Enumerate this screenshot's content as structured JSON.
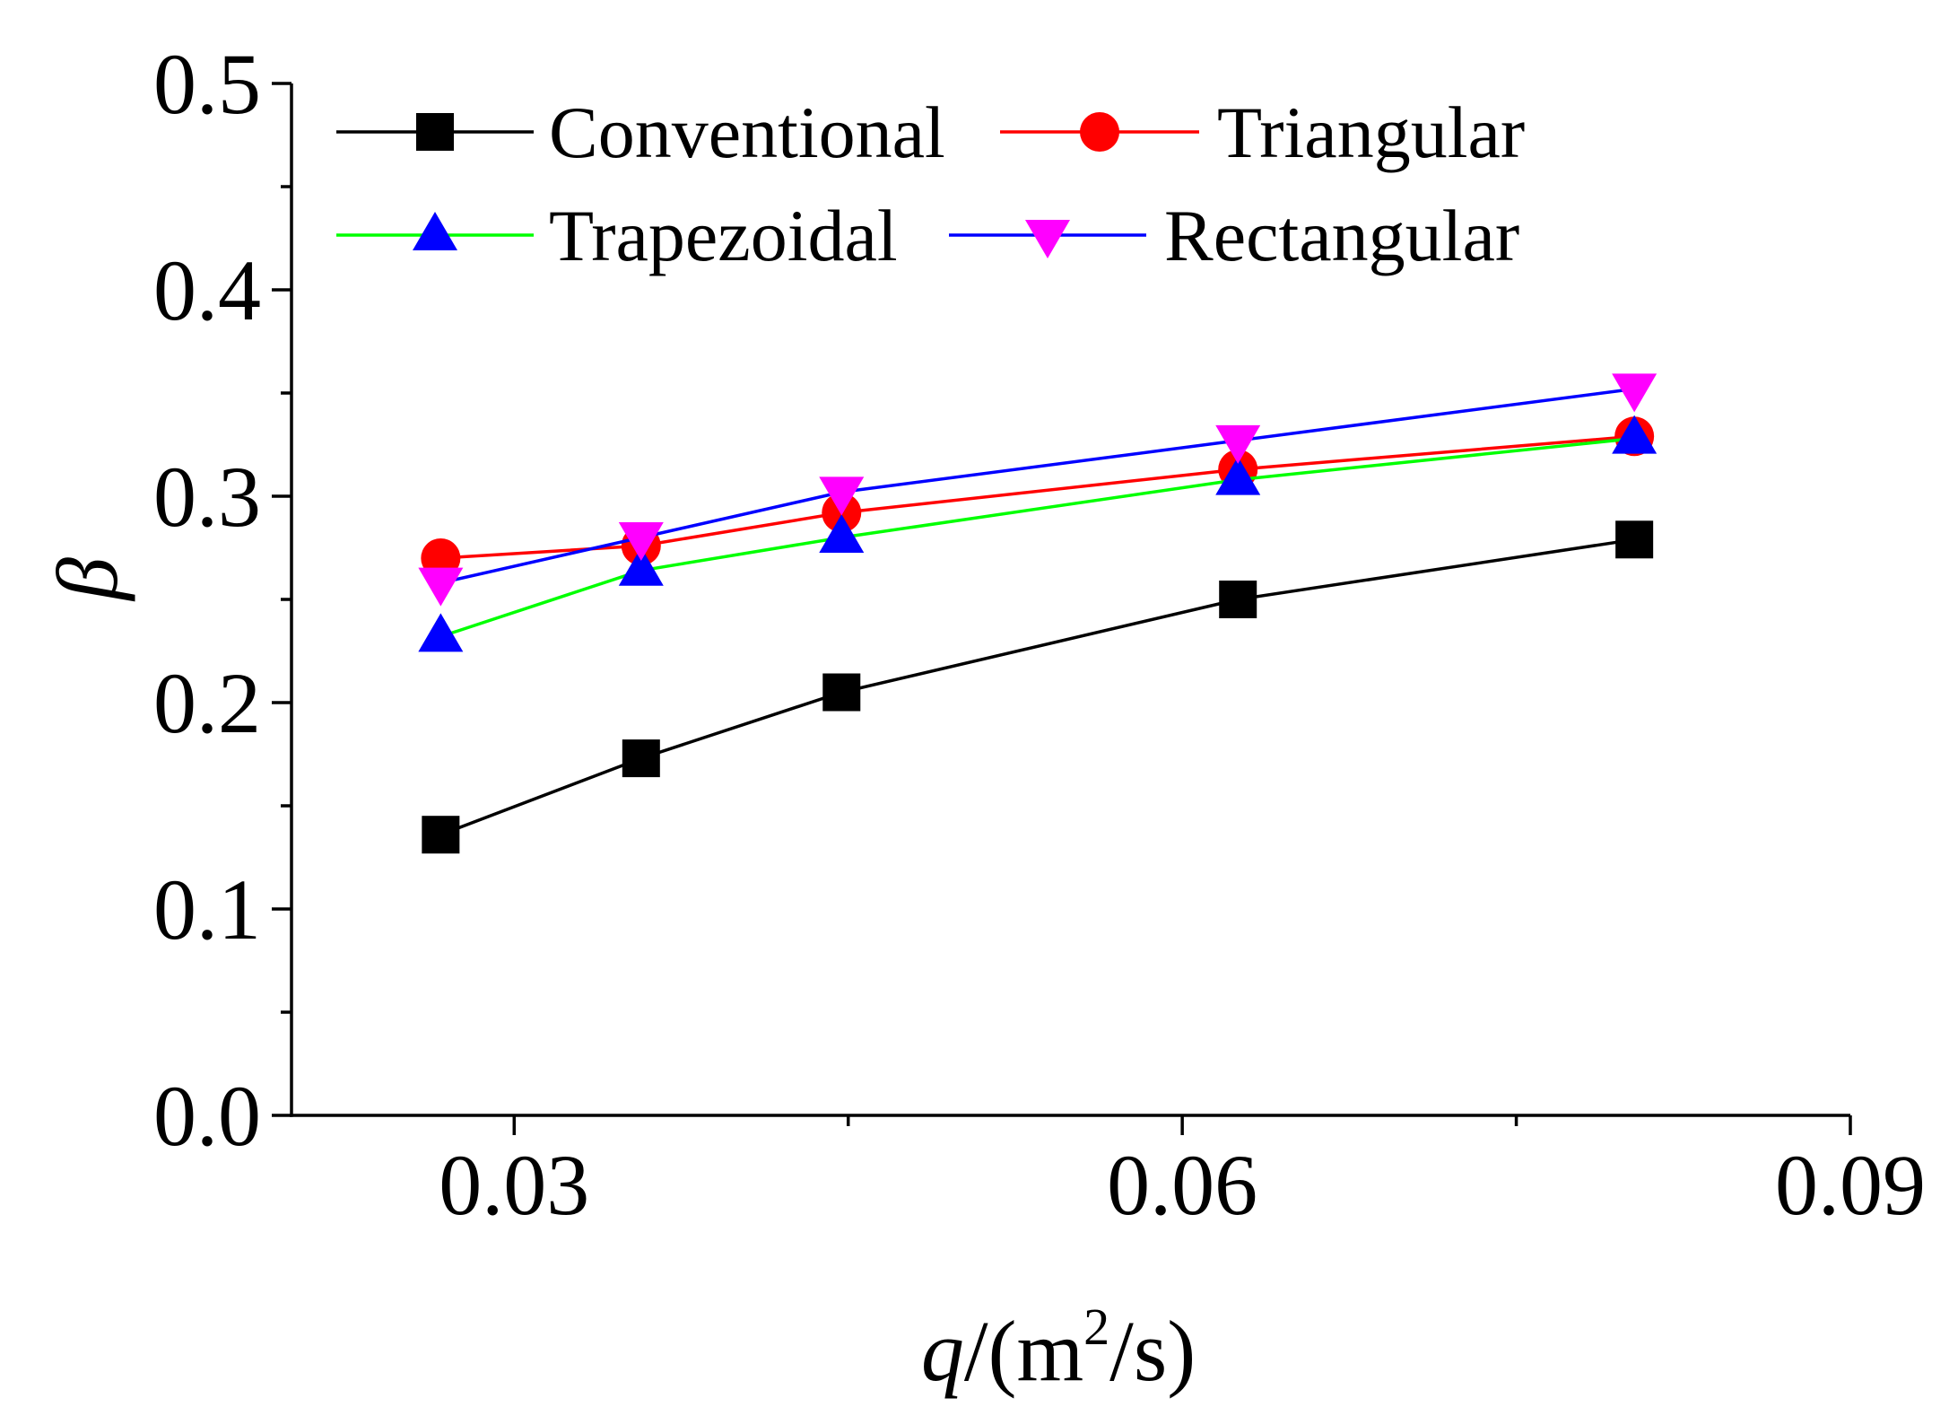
{
  "chart_data": {
    "type": "line",
    "title": "",
    "xlabel": {
      "var": "q",
      "rest": "/(m",
      "sup": "2",
      "end": "/s)"
    },
    "ylabel": "β",
    "xlim": [
      0.02,
      0.09
    ],
    "ylim": [
      0.0,
      0.5
    ],
    "x_ticks": [
      0.03,
      0.06,
      0.09
    ],
    "x_tick_labels": [
      "0.03",
      "0.06",
      "0.09"
    ],
    "x_minor_ticks": [
      0.045,
      0.075
    ],
    "y_ticks": [
      0.0,
      0.1,
      0.2,
      0.3,
      0.4,
      0.5
    ],
    "y_tick_labels": [
      "0.0",
      "0.1",
      "0.2",
      "0.3",
      "0.4",
      "0.5"
    ],
    "y_minor_ticks": [
      0.05,
      0.15,
      0.25,
      0.35,
      0.45
    ],
    "legend_position": "top",
    "series": [
      {
        "name": "Conventional",
        "color": "#000000",
        "marker": "square",
        "x": [
          0.0267,
          0.0357,
          0.0447,
          0.0625,
          0.0803
        ],
        "y": [
          0.136,
          0.173,
          0.205,
          0.25,
          0.279
        ]
      },
      {
        "name": "Triangular",
        "color": "#ff0000",
        "marker": "circle",
        "x": [
          0.0267,
          0.0357,
          0.0447,
          0.0625,
          0.0803
        ],
        "y": [
          0.27,
          0.276,
          0.292,
          0.313,
          0.329
        ]
      },
      {
        "name": "Trapezoidal",
        "color": "#00ff00",
        "marker_color": "#0000ff",
        "marker": "triangle-up",
        "x": [
          0.0267,
          0.0357,
          0.0447,
          0.0625,
          0.0803
        ],
        "y": [
          0.232,
          0.264,
          0.28,
          0.308,
          0.328
        ]
      },
      {
        "name": "Rectangular",
        "color": "#0000ff",
        "marker_color": "#ff00ff",
        "marker": "triangle-down",
        "x": [
          0.0267,
          0.0357,
          0.0447,
          0.0625,
          0.0803
        ],
        "y": [
          0.258,
          0.28,
          0.302,
          0.327,
          0.352
        ]
      }
    ]
  }
}
